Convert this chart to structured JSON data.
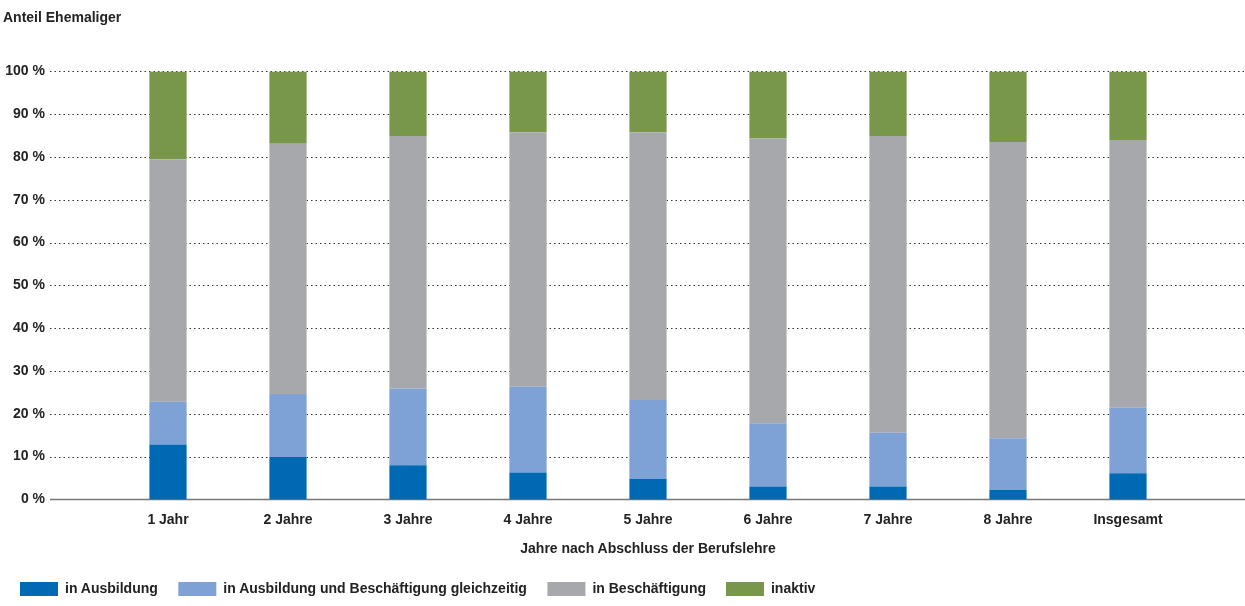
{
  "chart_data": {
    "type": "bar",
    "stacked": true,
    "ylabel": "Anteil Ehemaliger",
    "xlabel": "Jahre nach Abschluss der Berufslehre",
    "categories": [
      "1 Jahr",
      "2 Jahre",
      "3 Jahre",
      "4 Jahre",
      "5 Jahre",
      "6 Jahre",
      "7 Jahre",
      "8 Jahre",
      "Insgesamt"
    ],
    "series": [
      {
        "name": "in Ausbildung",
        "color": "#0069b4",
        "values": [
          12.8,
          9.9,
          8.0,
          6.3,
          4.8,
          3.0,
          3.0,
          2.2,
          6.1
        ]
      },
      {
        "name": "in Ausbildung und Beschäftigung gleichzeitig",
        "color": "#7ea1d6",
        "values": [
          10.0,
          14.7,
          17.9,
          20.0,
          18.4,
          14.8,
          12.6,
          12.1,
          15.3
        ]
      },
      {
        "name": "in Beschäftigung",
        "color": "#a7a8ac",
        "values": [
          56.7,
          58.5,
          59.0,
          59.5,
          62.6,
          66.5,
          69.3,
          69.2,
          62.6
        ]
      },
      {
        "name": "inaktiv",
        "color": "#78974b",
        "values": [
          20.5,
          16.9,
          15.1,
          14.2,
          14.2,
          15.7,
          15.1,
          16.5,
          16.0
        ]
      }
    ],
    "ylim": [
      0,
      100
    ],
    "yticks": [
      {
        "value": 0,
        "label": "0 %"
      },
      {
        "value": 10,
        "label": "10 %"
      },
      {
        "value": 20,
        "label": "20 %"
      },
      {
        "value": 30,
        "label": "30 %"
      },
      {
        "value": 40,
        "label": "40 %"
      },
      {
        "value": 50,
        "label": "50 %"
      },
      {
        "value": 60,
        "label": "60 %"
      },
      {
        "value": 70,
        "label": "70 %"
      },
      {
        "value": 80,
        "label": "80 %"
      },
      {
        "value": 90,
        "label": "90 %"
      },
      {
        "value": 100,
        "label": "100 %"
      }
    ],
    "grid": "y",
    "legend": "bottom left"
  }
}
